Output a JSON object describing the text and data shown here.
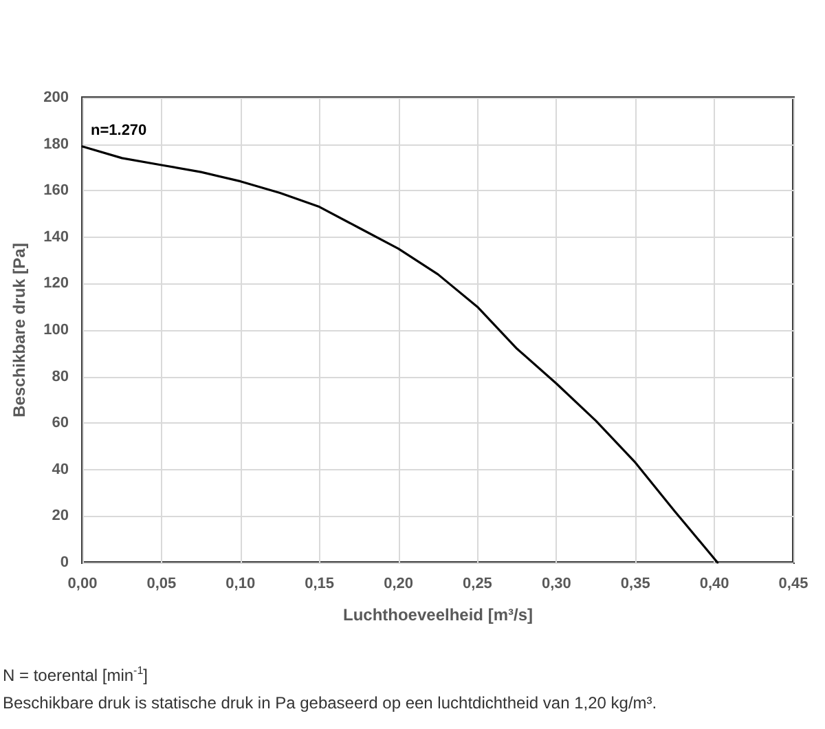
{
  "chart_data": {
    "type": "line",
    "xlabel": "Luchthoeveelheid [m³/s]",
    "ylabel": "Beschikbare druk [Pa]",
    "x": [
      0,
      0.025,
      0.05,
      0.075,
      0.1,
      0.125,
      0.15,
      0.175,
      0.2,
      0.225,
      0.25,
      0.275,
      0.3,
      0.325,
      0.35,
      0.375,
      0.402
    ],
    "series": [
      {
        "color": "#000000",
        "values": [
          179,
          174,
          171,
          168,
          164,
          159,
          153,
          144,
          135,
          124,
          110,
          92,
          77,
          61,
          43,
          22,
          0
        ]
      }
    ],
    "xlim": [
      0,
      0.45
    ],
    "xticks": [
      {
        "value": 0,
        "label": "0,00"
      },
      {
        "value": 0.05,
        "label": "0,05"
      },
      {
        "value": 0.1,
        "label": "0,10"
      },
      {
        "value": 0.15,
        "label": "0,15"
      },
      {
        "value": 0.2,
        "label": "0,20"
      },
      {
        "value": 0.25,
        "label": "0,25"
      },
      {
        "value": 0.3,
        "label": "0,30"
      },
      {
        "value": 0.35,
        "label": "0,35"
      },
      {
        "value": 0.4,
        "label": "0,40"
      },
      {
        "value": 0.45,
        "label": "0,45"
      }
    ],
    "ylim": [
      0,
      200
    ],
    "yticks": [
      0,
      20,
      40,
      60,
      80,
      100,
      120,
      140,
      160,
      180,
      200
    ],
    "grid": true,
    "marker": "none",
    "line_style": "solid",
    "annotations": [
      {
        "text": "n=1.270",
        "x": 0,
        "y": 179
      },
      "N = toerental [min$^{-1}$]",
      "Beschikbare druk is statische druk in Pa gebaseerd op een luchtdichtheid van 1,20 kg/m³."
    ]
  }
}
